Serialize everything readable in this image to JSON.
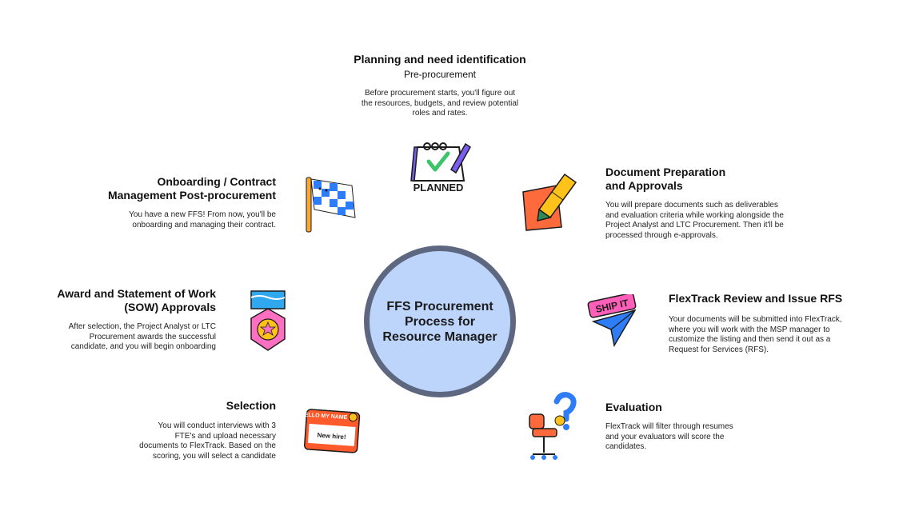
{
  "center": {
    "label": "FFS Procurement Process for Resource Manager"
  },
  "steps": {
    "planning": {
      "title": "Planning and need identification",
      "subtitle": "Pre-procurement",
      "description": "Before procurement starts, you'll figure out the resources, budgets, and review potential roles and rates.",
      "icon_label": "PLANNED"
    },
    "document": {
      "title": "Document Preparation and Approvals",
      "description": "You will prepare documents such as deliverables and evaluation criteria while working alongside the Project Analyst and LTC Procurement. Then it'll be processed through e-approvals."
    },
    "flextrack": {
      "title": "FlexTrack Review and Issue RFS",
      "description": "Your documents will be submitted into FlexTrack, where you will work with the MSP manager to customize the listing and then send it out as a Request for Services (RFS).",
      "icon_label": "SHIP IT"
    },
    "evaluation": {
      "title": "Evaluation",
      "description": "FlexTrack will filter through resumes and your evaluators will score the candidates."
    },
    "selection": {
      "title": "Selection",
      "description": "You will conduct interviews with 3 FTE's and upload necessary documents to FlexTrack. Based on the scoring, you will select a candidate",
      "icon_label_top": "HELLO MY NAME IS",
      "icon_label_bottom": "New hire!"
    },
    "award": {
      "title": "Award and Statement of Work (SOW) Approvals",
      "description": "After selection, the Project Analyst or LTC Procurement awards the successful candidate, and you will begin onboarding"
    },
    "onboarding": {
      "title": "Onboarding / Contract Management Post-procurement",
      "description": "You have a new FFS! From now, you'll be onboarding and managing their contract."
    }
  },
  "colors": {
    "circle_fill": "#bdd4fb",
    "circle_border": "#5d6780",
    "accent_purple": "#7a5cf0",
    "accent_orange": "#ff6a3d",
    "accent_blue": "#2f7df6",
    "accent_yellow": "#ffc21a",
    "accent_pink": "#ff6fc1"
  }
}
